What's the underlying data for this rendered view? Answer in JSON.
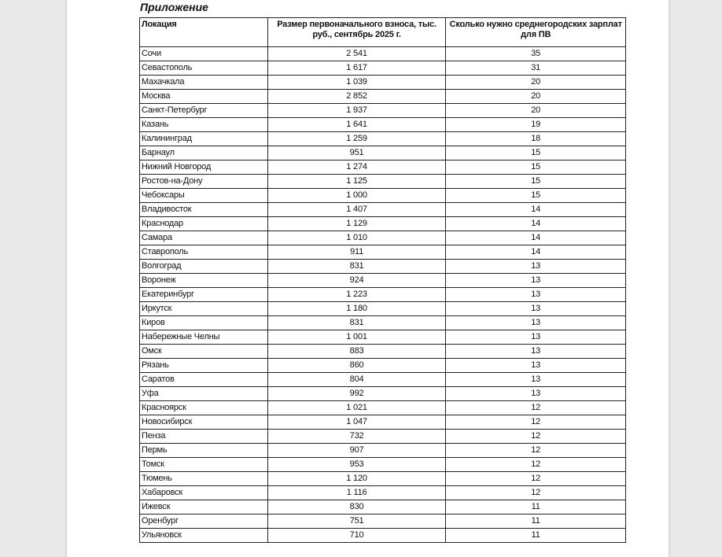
{
  "title": "Приложение",
  "table": {
    "headers": [
      "Локация",
      "Размер первоначального взноса, тыс. руб., сентябрь 2025 г.",
      "Сколько нужно среднегородских зарплат для ПВ"
    ],
    "rows": [
      [
        "Сочи",
        "2 541",
        "35"
      ],
      [
        "Севастополь",
        "1 617",
        "31"
      ],
      [
        "Махачкала",
        "1 039",
        "20"
      ],
      [
        "Москва",
        "2 852",
        "20"
      ],
      [
        "Санкт-Петербург",
        "1 937",
        "20"
      ],
      [
        "Казань",
        "1 641",
        "19"
      ],
      [
        "Калининград",
        "1 259",
        "18"
      ],
      [
        "Барнаул",
        "951",
        "15"
      ],
      [
        "Нижний Новгород",
        "1 274",
        "15"
      ],
      [
        "Ростов-на-Дону",
        "1 125",
        "15"
      ],
      [
        "Чебоксары",
        "1 000",
        "15"
      ],
      [
        "Владивосток",
        "1 407",
        "14"
      ],
      [
        "Краснодар",
        "1 129",
        "14"
      ],
      [
        "Самара",
        "1 010",
        "14"
      ],
      [
        "Ставрополь",
        "911",
        "14"
      ],
      [
        "Волгоград",
        "831",
        "13"
      ],
      [
        "Воронеж",
        "924",
        "13"
      ],
      [
        "Екатеринбург",
        "1 223",
        "13"
      ],
      [
        "Иркутск",
        "1 180",
        "13"
      ],
      [
        "Киров",
        "831",
        "13"
      ],
      [
        "Набережные Челны",
        "1 001",
        "13"
      ],
      [
        "Омск",
        "883",
        "13"
      ],
      [
        "Рязань",
        "860",
        "13"
      ],
      [
        "Саратов",
        "804",
        "13"
      ],
      [
        "Уфа",
        "992",
        "13"
      ],
      [
        "Красноярск",
        "1 021",
        "12"
      ],
      [
        "Новосибирск",
        "1 047",
        "12"
      ],
      [
        "Пенза",
        "732",
        "12"
      ],
      [
        "Пермь",
        "907",
        "12"
      ],
      [
        "Томск",
        "953",
        "12"
      ],
      [
        "Тюмень",
        "1 120",
        "12"
      ],
      [
        "Хабаровск",
        "1 116",
        "12"
      ],
      [
        "Ижевск",
        "830",
        "11"
      ],
      [
        "Оренбург",
        "751",
        "11"
      ],
      [
        "Ульяновск",
        "710",
        "11"
      ]
    ]
  }
}
